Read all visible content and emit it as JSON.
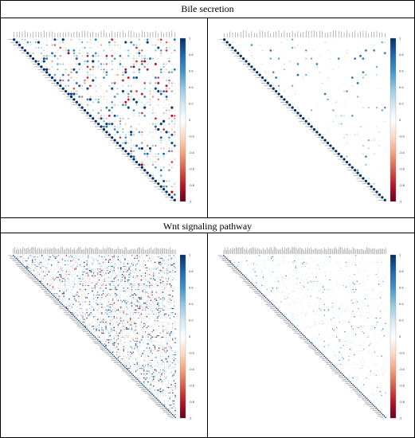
{
  "sections": [
    {
      "title": "Bile secretion"
    },
    {
      "title": "Wnt signaling pathway"
    }
  ],
  "colorbar": {
    "ticks": [
      "1",
      "0.8",
      "0.6",
      "0.4",
      "0.2",
      "0",
      "-0.2",
      "-0.4",
      "-0.6",
      "-0.8",
      "-1"
    ],
    "colors": [
      "#053061",
      "#2166ac",
      "#4393c3",
      "#92c5de",
      "#d1e5f0",
      "#ffffff",
      "#fddbc7",
      "#f4a582",
      "#d6604d",
      "#b2182b",
      "#67001f"
    ]
  },
  "chart_data": [
    {
      "type": "heatmap",
      "title": "Bile secretion",
      "variant": "dense",
      "n_genes": 60,
      "value_range": [
        -1,
        1
      ],
      "diagonal_value": 1
    },
    {
      "type": "heatmap",
      "title": "Bile secretion",
      "variant": "sparse",
      "n_genes": 60,
      "value_range": [
        -1,
        1
      ],
      "diagonal_value": 1
    },
    {
      "type": "heatmap",
      "title": "Wnt signaling pathway",
      "variant": "dense",
      "n_genes": 120,
      "value_range": [
        -1,
        1
      ],
      "diagonal_value": 1
    },
    {
      "type": "heatmap",
      "title": "Wnt signaling pathway",
      "variant": "sparse",
      "n_genes": 120,
      "value_range": [
        -1,
        1
      ],
      "diagonal_value": 1
    }
  ]
}
